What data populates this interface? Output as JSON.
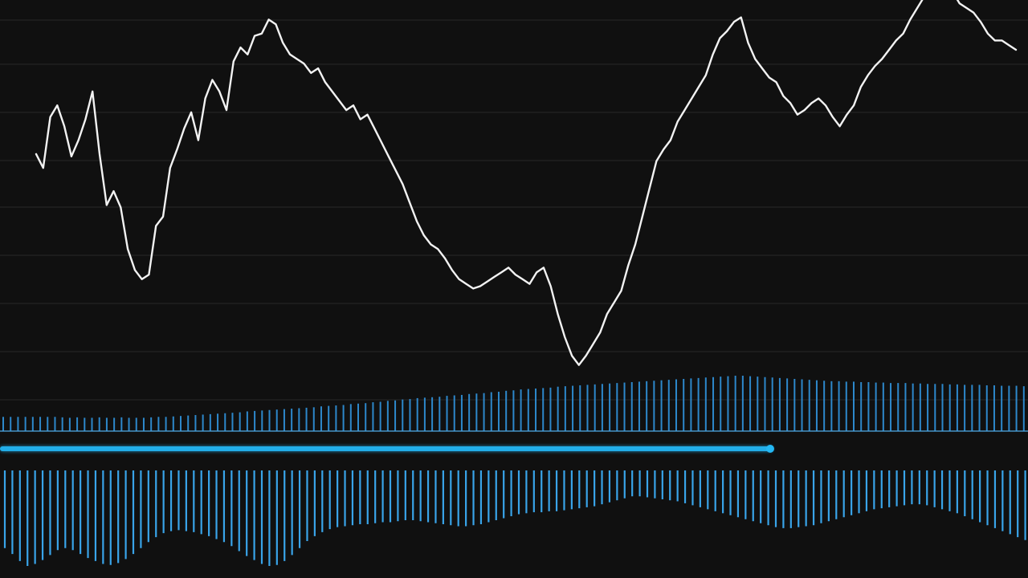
{
  "chart_data": [
    {
      "type": "line",
      "series": [
        {
          "values": [
            97,
            91,
            113,
            118,
            109,
            96,
            103,
            112,
            124,
            97,
            75,
            81,
            74,
            56,
            47,
            43,
            45,
            66,
            70,
            91,
            99,
            108,
            115,
            103,
            121,
            129,
            124,
            116,
            137,
            143,
            140,
            148,
            149,
            155,
            153,
            145,
            140,
            138,
            136,
            132,
            134,
            128,
            124,
            120,
            116,
            118,
            112,
            114,
            108,
            102,
            96,
            90,
            84,
            76,
            68,
            62,
            58,
            56,
            52,
            47,
            43,
            41,
            39,
            40,
            42,
            44,
            46,
            48,
            45,
            43,
            41,
            46,
            48,
            40,
            28,
            18,
            10,
            6,
            10,
            15,
            20,
            28,
            33,
            38,
            49,
            58,
            70,
            82,
            94,
            99,
            103,
            111,
            116,
            121,
            126,
            131,
            140,
            147,
            150,
            154,
            156,
            145,
            138,
            134,
            130,
            128,
            122,
            119,
            114,
            116,
            119,
            121,
            118,
            113,
            109,
            114,
            118,
            126,
            131,
            135,
            138,
            142,
            146,
            149,
            155,
            160,
            165,
            170,
            175,
            171,
            167,
            162,
            160,
            158,
            154,
            149,
            146,
            146,
            144,
            142
          ]
        }
      ]
    },
    {
      "type": "bar",
      "values": [
        10,
        10,
        10,
        10,
        10,
        10,
        10,
        10,
        9,
        8,
        9,
        8,
        8,
        9,
        8,
        8,
        9,
        8,
        8,
        8,
        9,
        10,
        10,
        11,
        12,
        13,
        14,
        15,
        16,
        17,
        18,
        19,
        20,
        22,
        23,
        24,
        25,
        26,
        27,
        28,
        29,
        30,
        31,
        33,
        34,
        35,
        36,
        38,
        39,
        40,
        42,
        43,
        45,
        46,
        48,
        49,
        51,
        52,
        53,
        54,
        56,
        57,
        58,
        60,
        61,
        62,
        64,
        65,
        67,
        68,
        70,
        71,
        72,
        73,
        74,
        76,
        77,
        78,
        79,
        80,
        81,
        82,
        83,
        84,
        85,
        86,
        87,
        88,
        89,
        90,
        91,
        92,
        93,
        94,
        95,
        96,
        97,
        98,
        99,
        100,
        100,
        99,
        98,
        97,
        96,
        95,
        94,
        93,
        92,
        91,
        90,
        89,
        88,
        88,
        87,
        87,
        86,
        86,
        85,
        85,
        84,
        84,
        84,
        83,
        83,
        82,
        82,
        82,
        81,
        81,
        80,
        80,
        80,
        79,
        79,
        78,
        78,
        78,
        77
      ]
    },
    {
      "type": "bar",
      "values": [
        0.78,
        0.84,
        0.91,
        0.96,
        0.94,
        0.9,
        0.85,
        0.8,
        0.78,
        0.8,
        0.84,
        0.88,
        0.91,
        0.94,
        0.95,
        0.93,
        0.89,
        0.84,
        0.78,
        0.72,
        0.67,
        0.63,
        0.61,
        0.6,
        0.61,
        0.62,
        0.64,
        0.66,
        0.69,
        0.72,
        0.76,
        0.81,
        0.86,
        0.9,
        0.94,
        0.96,
        0.95,
        0.91,
        0.85,
        0.78,
        0.71,
        0.66,
        0.62,
        0.59,
        0.57,
        0.56,
        0.55,
        0.54,
        0.54,
        0.53,
        0.52,
        0.52,
        0.51,
        0.5,
        0.5,
        0.51,
        0.52,
        0.53,
        0.54,
        0.55,
        0.56,
        0.56,
        0.55,
        0.54,
        0.52,
        0.5,
        0.48,
        0.46,
        0.44,
        0.43,
        0.42,
        0.42,
        0.41,
        0.41,
        0.4,
        0.39,
        0.38,
        0.37,
        0.36,
        0.34,
        0.32,
        0.3,
        0.28,
        0.26,
        0.26,
        0.27,
        0.28,
        0.29,
        0.3,
        0.31,
        0.33,
        0.35,
        0.37,
        0.39,
        0.41,
        0.43,
        0.45,
        0.47,
        0.49,
        0.51,
        0.53,
        0.55,
        0.57,
        0.58,
        0.58,
        0.57,
        0.56,
        0.55,
        0.53,
        0.51,
        0.49,
        0.47,
        0.45,
        0.43,
        0.41,
        0.39,
        0.38,
        0.37,
        0.36,
        0.35,
        0.34,
        0.34,
        0.35,
        0.37,
        0.39,
        0.41,
        0.43,
        0.46,
        0.49,
        0.52,
        0.55,
        0.58,
        0.61,
        0.64,
        0.67,
        0.7
      ]
    }
  ],
  "scrubber": {
    "position_fraction": 0.75
  },
  "colors": {
    "price": "#f2f2f2",
    "volume": "#2f8fd6",
    "oscillator": "#3aa7ee",
    "accent": "#24b8f4"
  }
}
